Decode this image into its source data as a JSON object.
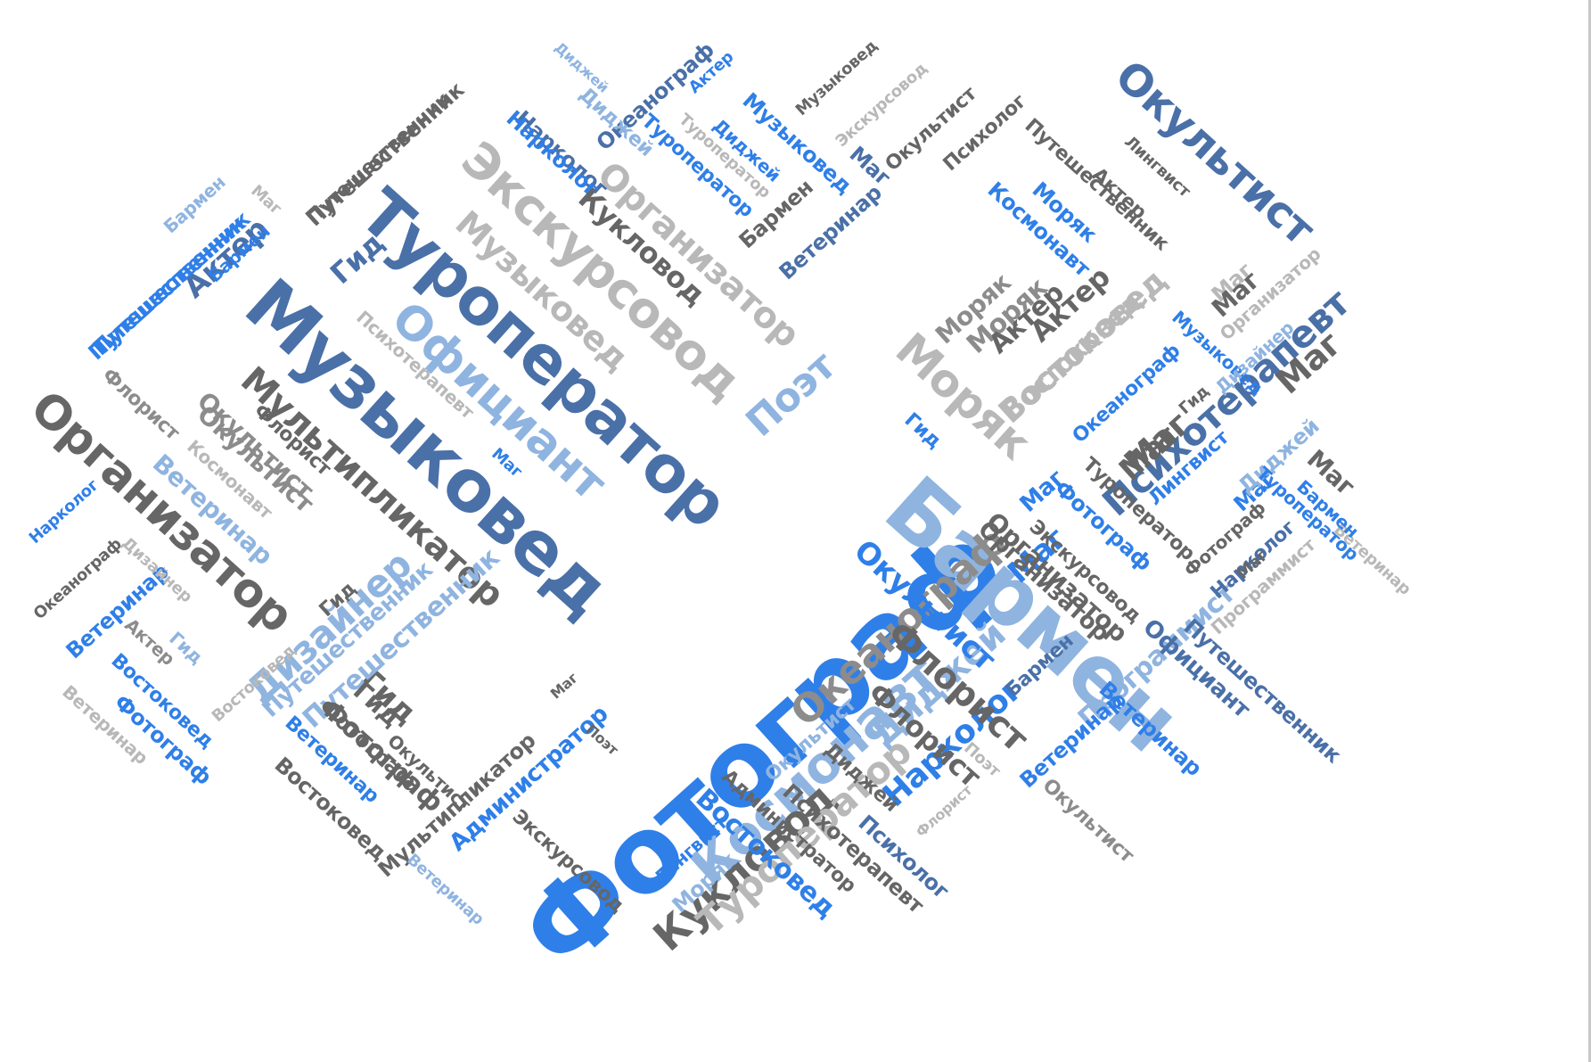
{
  "word_cloud": {
    "colors": {
      "blue": "#2f7fe8",
      "dark_blue": "#4a70a8",
      "light_blue": "#8fb4e0",
      "dark_grey": "#666666",
      "grey": "#8c8c8c",
      "light_grey": "#b8b8b8"
    },
    "words": [
      {
        "text": "Фотограф",
        "size": "largest",
        "color": "blue",
        "orientation": "diagonal-up"
      },
      {
        "text": "Бармен",
        "size": "very-large",
        "color": "light_blue",
        "orientation": "diagonal-down"
      },
      {
        "text": "Музыковед",
        "size": "very-large",
        "color": "dark_blue",
        "orientation": "diagonal-down"
      },
      {
        "text": "Туроператор",
        "size": "large",
        "color": "dark_blue",
        "orientation": "diagonal-down"
      },
      {
        "text": "Космонавт",
        "size": "large",
        "color": "light_blue",
        "orientation": "diagonal-up"
      },
      {
        "text": "Экскурсовод",
        "size": "large",
        "color": "light_grey",
        "orientation": "diagonal-down"
      },
      {
        "text": "Окультист",
        "size": "large",
        "color": "dark_blue",
        "orientation": "diagonal-down"
      },
      {
        "text": "Организатор",
        "size": "large",
        "color": "dark_grey",
        "orientation": "diagonal-down"
      },
      {
        "text": "Официант",
        "size": "large",
        "color": "light_blue",
        "orientation": "diagonal-down"
      },
      {
        "text": "Мультипликатор",
        "size": "large",
        "color": "dark_grey",
        "orientation": "diagonal-down"
      },
      {
        "text": "Психотерапевт",
        "size": "large",
        "color": "dark_blue",
        "orientation": "diagonal-up"
      },
      {
        "text": "Моряк",
        "size": "large",
        "color": "light_grey",
        "orientation": "diagonal-down"
      },
      {
        "text": "Музыковед",
        "size": "medium",
        "color": "light_grey",
        "orientation": "diagonal-down"
      },
      {
        "text": "Организатор",
        "size": "medium",
        "color": "light_grey",
        "orientation": "diagonal-down"
      },
      {
        "text": "Кукловод",
        "size": "medium",
        "color": "dark_grey",
        "orientation": "diagonal-down"
      },
      {
        "text": "Поэт",
        "size": "medium",
        "color": "light_blue",
        "orientation": "diagonal-up"
      },
      {
        "text": "Дизайнер",
        "size": "medium",
        "color": "light_blue",
        "orientation": "diagonal-up"
      },
      {
        "text": "Океанограф",
        "size": "medium",
        "color": "grey",
        "orientation": "diagonal-up"
      },
      {
        "text": "Диджей",
        "size": "medium",
        "color": "light_blue",
        "orientation": "diagonal-up"
      },
      {
        "text": "Нарколог",
        "size": "medium",
        "color": "blue",
        "orientation": "diagonal-up"
      },
      {
        "text": "Флорист",
        "size": "medium",
        "color": "dark_grey",
        "orientation": "diagonal-down"
      },
      {
        "text": "Окультист",
        "size": "medium",
        "color": "blue",
        "orientation": "diagonal-down"
      },
      {
        "text": "Кукловод",
        "size": "medium",
        "color": "dark_grey",
        "orientation": "diagonal-up"
      },
      {
        "text": "Туроператор",
        "size": "medium",
        "color": "light_grey",
        "orientation": "diagonal-up"
      },
      {
        "text": "Востоковед",
        "size": "medium",
        "color": "light_grey",
        "orientation": "diagonal-up"
      },
      {
        "text": "Моряк",
        "size": "medium",
        "color": "grey",
        "orientation": "diagonal-up"
      },
      {
        "text": "Актер",
        "size": "medium",
        "color": "dark_grey",
        "orientation": "diagonal-up"
      },
      {
        "text": "Маг",
        "size": "medium",
        "color": "dark_grey",
        "orientation": "diagonal-up"
      },
      {
        "text": "Маг",
        "size": "medium",
        "color": "blue",
        "orientation": "diagonal-up"
      },
      {
        "text": "Маг",
        "size": "medium",
        "color": "dark_grey",
        "orientation": "diagonal-up"
      },
      {
        "text": "Гид",
        "size": "medium",
        "color": "dark_blue",
        "orientation": "diagonal-up"
      },
      {
        "text": "Гид",
        "size": "medium",
        "color": "dark_grey",
        "orientation": "diagonal-down"
      },
      {
        "text": "Актер",
        "size": "medium",
        "color": "dark_blue",
        "orientation": "diagonal-up"
      },
      {
        "text": "Окультист",
        "size": "medium",
        "color": "grey",
        "orientation": "diagonal-down"
      },
      {
        "text": "Ветеринар",
        "size": "medium",
        "color": "light_blue",
        "orientation": "diagonal-down"
      },
      {
        "text": "Путешественник",
        "size": "medium",
        "color": "light_blue",
        "orientation": "diagonal-up"
      },
      {
        "text": "Фотограф",
        "size": "medium",
        "color": "dark_grey",
        "orientation": "diagonal-down"
      },
      {
        "text": "Флорист",
        "size": "medium",
        "color": "dark_grey",
        "orientation": "diagonal-down"
      },
      {
        "text": "Программист",
        "size": "medium",
        "color": "light_blue",
        "orientation": "diagonal-up"
      },
      {
        "text": "Официант",
        "size": "small",
        "color": "dark_blue",
        "orientation": "diagonal-down"
      },
      {
        "text": "Путешественник",
        "size": "small",
        "color": "dark_grey",
        "orientation": "diagonal-down"
      },
      {
        "text": "Путешественник",
        "size": "small",
        "color": "dark_grey",
        "orientation": "diagonal-up"
      },
      {
        "text": "Путешественник",
        "size": "small",
        "color": "blue",
        "orientation": "diagonal-up"
      },
      {
        "text": "Путешественник",
        "size": "small",
        "color": "dark_blue",
        "orientation": "diagonal-down"
      },
      {
        "text": "Окультист",
        "size": "small",
        "color": "dark_grey",
        "orientation": "diagonal-up"
      },
      {
        "text": "Психолог",
        "size": "small",
        "color": "dark_grey",
        "orientation": "diagonal-up"
      },
      {
        "text": "Бармен",
        "size": "small",
        "color": "dark_grey",
        "orientation": "diagonal-up"
      },
      {
        "text": "Ветеринар",
        "size": "small",
        "color": "dark_blue",
        "orientation": "diagonal-up"
      },
      {
        "text": "Музыковед",
        "size": "small",
        "color": "blue",
        "orientation": "diagonal-down"
      },
      {
        "text": "Диджей",
        "size": "small",
        "color": "blue",
        "orientation": "diagonal-down"
      },
      {
        "text": "Туроператор",
        "size": "small",
        "color": "blue",
        "orientation": "diagonal-down"
      },
      {
        "text": "Туроператор",
        "size": "small",
        "color": "light_grey",
        "orientation": "diagonal-down"
      },
      {
        "text": "Океанограф",
        "size": "small",
        "color": "dark_blue",
        "orientation": "diagonal-up"
      },
      {
        "text": "Нарколог",
        "size": "small",
        "color": "dark_blue",
        "orientation": "diagonal-down"
      },
      {
        "text": "Актер",
        "size": "small",
        "color": "blue",
        "orientation": "diagonal-up"
      },
      {
        "text": "Диджей",
        "size": "small",
        "color": "light_blue",
        "orientation": "diagonal-up"
      },
      {
        "text": "Музыковед",
        "size": "small",
        "color": "dark_grey",
        "orientation": "diagonal-up"
      },
      {
        "text": "Экскурсовод",
        "size": "small",
        "color": "light_grey",
        "orientation": "diagonal-up"
      },
      {
        "text": "Маг",
        "size": "small",
        "color": "dark_blue",
        "orientation": "diagonal-down"
      },
      {
        "text": "Космонавт",
        "size": "small",
        "color": "blue",
        "orientation": "diagonal-down"
      },
      {
        "text": "Моряк",
        "size": "small",
        "color": "blue",
        "orientation": "diagonal-down"
      },
      {
        "text": "Лингвист",
        "size": "small",
        "color": "dark_grey",
        "orientation": "diagonal-down"
      },
      {
        "text": "Актер",
        "size": "small",
        "color": "dark_grey",
        "orientation": "diagonal-down"
      },
      {
        "text": "Моряк",
        "size": "small",
        "color": "grey",
        "orientation": "diagonal-up"
      },
      {
        "text": "Актер",
        "size": "small",
        "color": "dark_grey",
        "orientation": "diagonal-up"
      },
      {
        "text": "Востоковед",
        "size": "small",
        "color": "light_grey",
        "orientation": "diagonal-up"
      },
      {
        "text": "Маг",
        "size": "small",
        "color": "light_grey",
        "orientation": "diagonal-up"
      },
      {
        "text": "Организатор",
        "size": "small",
        "color": "light_grey",
        "orientation": "diagonal-up"
      },
      {
        "text": "Маг",
        "size": "small",
        "color": "dark_grey",
        "orientation": "diagonal-up"
      },
      {
        "text": "Музыковед",
        "size": "small",
        "color": "blue",
        "orientation": "diagonal-down"
      },
      {
        "text": "Океанограф",
        "size": "small",
        "color": "blue",
        "orientation": "diagonal-up"
      },
      {
        "text": "Гид",
        "size": "small",
        "color": "blue",
        "orientation": "diagonal-down"
      },
      {
        "text": "Гид",
        "size": "small",
        "color": "dark_grey",
        "orientation": "diagonal-up"
      },
      {
        "text": "Маг",
        "size": "small",
        "color": "dark_grey",
        "orientation": "diagonal-up"
      },
      {
        "text": "Лингвист",
        "size": "small",
        "color": "blue",
        "orientation": "diagonal-up"
      },
      {
        "text": "Маг",
        "size": "small",
        "color": "blue",
        "orientation": "diagonal-down"
      },
      {
        "text": "Диджей",
        "size": "small",
        "color": "light_blue",
        "orientation": "diagonal-up"
      },
      {
        "text": "Маг",
        "size": "small",
        "color": "dark_grey",
        "orientation": "diagonal-down"
      },
      {
        "text": "Туроператор",
        "size": "small",
        "color": "dark_grey",
        "orientation": "diagonal-down"
      },
      {
        "text": "Туроператор",
        "size": "small",
        "color": "blue",
        "orientation": "diagonal-down"
      },
      {
        "text": "Фотограф",
        "size": "small",
        "color": "blue",
        "orientation": "diagonal-down"
      },
      {
        "text": "Фотограф",
        "size": "small",
        "color": "dark_grey",
        "orientation": "diagonal-up"
      },
      {
        "text": "Нарколог",
        "size": "small",
        "color": "dark_blue",
        "orientation": "diagonal-up"
      },
      {
        "text": "Организатор",
        "size": "small",
        "color": "dark_grey",
        "orientation": "diagonal-down"
      },
      {
        "text": "Экскурсовод",
        "size": "small",
        "color": "dark_grey",
        "orientation": "diagonal-down"
      },
      {
        "text": "Программист",
        "size": "small",
        "color": "light_grey",
        "orientation": "diagonal-up"
      },
      {
        "text": "Бармен",
        "size": "small",
        "color": "dark_blue",
        "orientation": "diagonal-up"
      },
      {
        "text": "Ветеринар",
        "size": "small",
        "color": "blue",
        "orientation": "diagonal-up"
      },
      {
        "text": "Ветеринар",
        "size": "small",
        "color": "blue",
        "orientation": "diagonal-down"
      },
      {
        "text": "Окультист",
        "size": "small",
        "color": "grey",
        "orientation": "diagonal-down"
      },
      {
        "text": "Поэт",
        "size": "small",
        "color": "light_grey",
        "orientation": "diagonal-down"
      },
      {
        "text": "Флорист",
        "size": "small",
        "color": "light_grey",
        "orientation": "diagonal-up"
      },
      {
        "text": "Диджей",
        "size": "small",
        "color": "dark_grey",
        "orientation": "diagonal-down"
      },
      {
        "text": "Психолог",
        "size": "small",
        "color": "dark_blue",
        "orientation": "diagonal-down"
      },
      {
        "text": "Психотерапевт",
        "size": "small",
        "color": "dark_grey",
        "orientation": "diagonal-down"
      },
      {
        "text": "Администратор",
        "size": "small",
        "color": "dark_grey",
        "orientation": "diagonal-down"
      },
      {
        "text": "Окультист",
        "size": "small",
        "color": "light_blue",
        "orientation": "diagonal-up"
      },
      {
        "text": "Востоковед",
        "size": "small",
        "color": "blue",
        "orientation": "diagonal-down"
      },
      {
        "text": "Моряк",
        "size": "small",
        "color": "light_blue",
        "orientation": "diagonal-up"
      },
      {
        "text": "Лингвист",
        "size": "small",
        "color": "blue",
        "orientation": "diagonal-up"
      },
      {
        "text": "Экскурсовод",
        "size": "small",
        "color": "dark_grey",
        "orientation": "diagonal-down"
      },
      {
        "text": "Мультипликатор",
        "size": "small",
        "color": "dark_grey",
        "orientation": "diagonal-up"
      },
      {
        "text": "Ветеринар",
        "size": "small",
        "color": "light_blue",
        "orientation": "diagonal-down"
      },
      {
        "text": "Администратор",
        "size": "small",
        "color": "blue",
        "orientation": "diagonal-up"
      },
      {
        "text": "Поэт",
        "size": "small",
        "color": "dark_grey",
        "orientation": "diagonal-down"
      },
      {
        "text": "Маг",
        "size": "small",
        "color": "dark_grey",
        "orientation": "diagonal-up"
      },
      {
        "text": "Востоковед",
        "size": "small",
        "color": "dark_grey",
        "orientation": "diagonal-down"
      },
      {
        "text": "Ветеринар",
        "size": "small",
        "color": "blue",
        "orientation": "diagonal-down"
      },
      {
        "text": "Фотограф",
        "size": "small",
        "color": "dark_grey",
        "orientation": "diagonal-down"
      },
      {
        "text": "Востоковед",
        "size": "small",
        "color": "light_grey",
        "orientation": "diagonal-up"
      },
      {
        "text": "Путешественник",
        "size": "small",
        "color": "light_blue",
        "orientation": "diagonal-up"
      },
      {
        "text": "Гид",
        "size": "small",
        "color": "dark_grey",
        "orientation": "diagonal-down"
      },
      {
        "text": "Фотограф",
        "size": "small",
        "color": "blue",
        "orientation": "diagonal-down"
      },
      {
        "text": "Ветеринар",
        "size": "small",
        "color": "light_grey",
        "orientation": "diagonal-down"
      },
      {
        "text": "Востоковед",
        "size": "small",
        "color": "blue",
        "orientation": "diagonal-down"
      },
      {
        "text": "Актер",
        "size": "small",
        "color": "grey",
        "orientation": "diagonal-down"
      },
      {
        "text": "Гид",
        "size": "small",
        "color": "light_blue",
        "orientation": "diagonal-down"
      },
      {
        "text": "Ветеринар",
        "size": "small",
        "color": "blue",
        "orientation": "diagonal-up"
      },
      {
        "text": "Океанограф",
        "size": "small",
        "color": "dark_grey",
        "orientation": "diagonal-up"
      },
      {
        "text": "Дизайнер",
        "size": "small",
        "color": "light_grey",
        "orientation": "diagonal-down"
      },
      {
        "text": "Нарколог",
        "size": "small",
        "color": "blue",
        "orientation": "diagonal-up"
      },
      {
        "text": "Организатор",
        "size": "small",
        "color": "dark_grey",
        "orientation": "diagonal-down"
      },
      {
        "text": "Флорист",
        "size": "small",
        "color": "grey",
        "orientation": "diagonal-down"
      },
      {
        "text": "Окультист",
        "size": "small",
        "color": "grey",
        "orientation": "diagonal-down"
      },
      {
        "text": "Флорист",
        "size": "small",
        "color": "dark_grey",
        "orientation": "diagonal-down"
      },
      {
        "text": "Космонавт",
        "size": "small",
        "color": "light_grey",
        "orientation": "diagonal-down"
      },
      {
        "text": "Психотерапевт",
        "size": "small",
        "color": "light_grey",
        "orientation": "diagonal-down"
      },
      {
        "text": "Маг",
        "size": "small",
        "color": "blue",
        "orientation": "diagonal-down"
      },
      {
        "text": "Маг",
        "size": "small",
        "color": "blue",
        "orientation": "diagonal-up"
      },
      {
        "text": "Путешественник",
        "size": "small",
        "color": "blue",
        "orientation": "diagonal-up"
      },
      {
        "text": "Бармен",
        "size": "small",
        "color": "light_blue",
        "orientation": "diagonal-up"
      },
      {
        "text": "Бармен",
        "size": "small",
        "color": "blue",
        "orientation": "diagonal-up"
      },
      {
        "text": "Маг",
        "size": "small",
        "color": "light_grey",
        "orientation": "diagonal-up"
      },
      {
        "text": "Путешественник",
        "size": "small",
        "color": "dark_grey",
        "orientation": "diagonal-up"
      },
      {
        "text": "Диджей",
        "size": "small",
        "color": "light_blue",
        "orientation": "diagonal-up"
      },
      {
        "text": "Нарколог",
        "size": "small",
        "color": "blue",
        "orientation": "diagonal-down"
      },
      {
        "text": "Окультист",
        "size": "small",
        "color": "dark_grey",
        "orientation": "diagonal-down"
      },
      {
        "text": "Гид",
        "size": "small",
        "color": "dark_grey",
        "orientation": "diagonal-up"
      },
      {
        "text": "Ветеринар",
        "size": "small",
        "color": "light_grey",
        "orientation": "diagonal-up"
      },
      {
        "text": "Маг",
        "size": "small",
        "color": "dark_grey",
        "orientation": "diagonal-down"
      },
      {
        "text": "Бармен",
        "size": "small",
        "color": "blue",
        "orientation": "diagonal-up"
      },
      {
        "text": "Дизайнер",
        "size": "small",
        "color": "light_blue",
        "orientation": "diagonal-up"
      }
    ]
  }
}
